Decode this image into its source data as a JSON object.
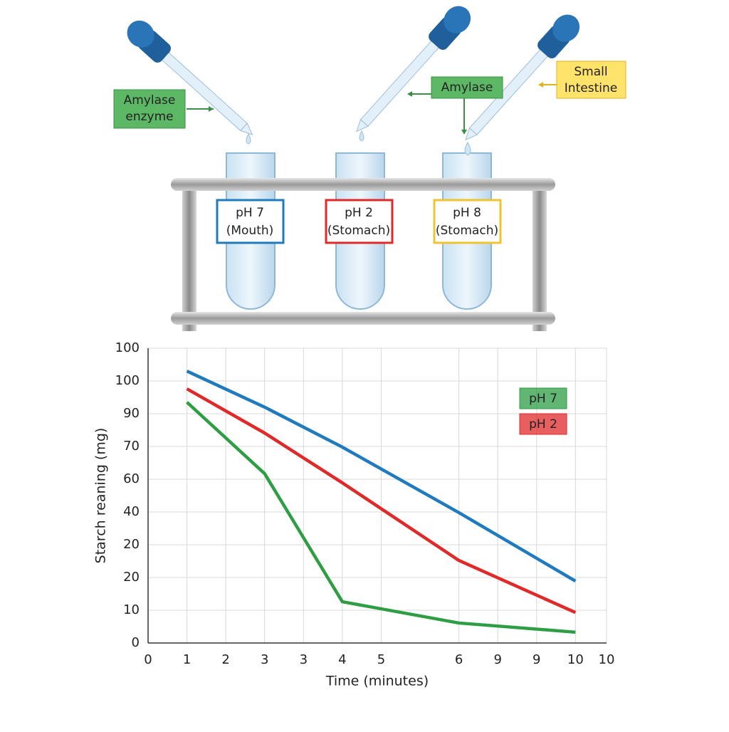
{
  "diagram": {
    "callouts": [
      "Amylase enzyme",
      "Amylase",
      "Small Intestine"
    ],
    "tubes": [
      {
        "ph": "pH 7",
        "place": "(Mouth)"
      },
      {
        "ph": "pH 2",
        "place": "(Stomach)"
      },
      {
        "ph": "pH 8",
        "place": "(Stomach)"
      }
    ]
  },
  "chart_data": {
    "type": "line",
    "x_label": "Time (minutes)",
    "y_label": "Starch reaning (mg)",
    "x": [
      1,
      3,
      5,
      8,
      11
    ],
    "series": [
      {
        "color": "#1f7bbd",
        "values": [
          83,
          72,
          59.8,
          39.8,
          18.9
        ]
      },
      {
        "name": "pH 2",
        "color": "#e02a2a",
        "values": [
          77.6,
          64.1,
          48.9,
          25.2,
          9.3
        ]
      },
      {
        "name": "pH 7",
        "color": "#2e9e45",
        "values": [
          73.5,
          51.7,
          12.6,
          6.1,
          3.3
        ]
      }
    ],
    "xlim": [
      0,
      11.8
    ],
    "xticks": [
      0,
      1,
      2,
      3,
      {
        "value": 4,
        "label": "3"
      },
      {
        "value": 5,
        "label": "4"
      },
      {
        "value": 6,
        "label": "5"
      },
      {
        "value": 8,
        "label": "6"
      },
      {
        "value": 9,
        "label": "9"
      },
      {
        "value": 10,
        "label": "9"
      },
      {
        "value": 11,
        "label": "10"
      },
      {
        "value": 11.8,
        "label": "10"
      }
    ],
    "ylim": [
      0,
      90
    ],
    "yticks": [
      0,
      10,
      20,
      {
        "value": 30,
        "label": "20"
      },
      40,
      {
        "value": 50,
        "label": "60"
      },
      {
        "value": 60,
        "label": "70"
      },
      {
        "value": 70,
        "label": "90"
      },
      {
        "value": 80,
        "label": "100"
      },
      {
        "value": 90,
        "label": "100"
      }
    ],
    "grid": true,
    "legend": "right"
  }
}
